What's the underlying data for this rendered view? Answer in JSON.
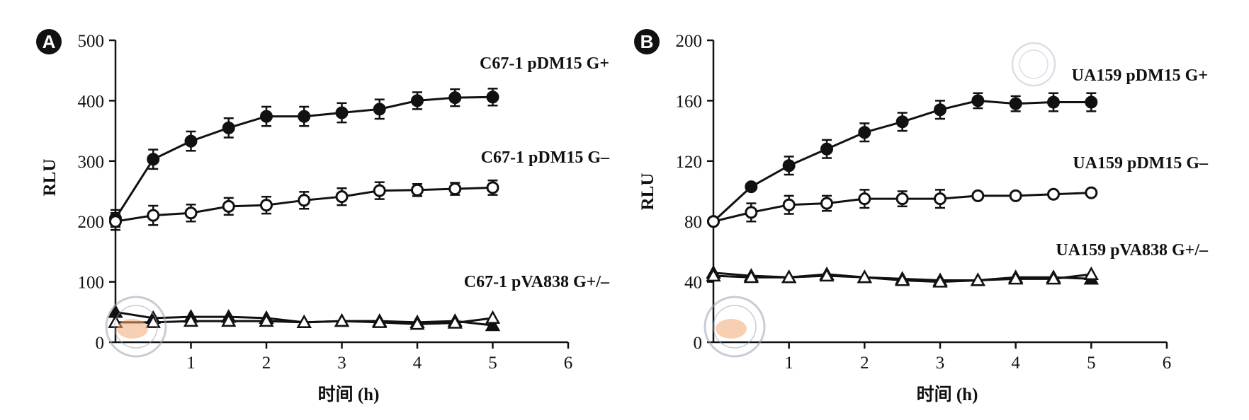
{
  "chart_data": [
    {
      "panel": "A",
      "type": "line",
      "ylabel": "RLU",
      "xlabel": "时间 (h)",
      "xlim": [
        0,
        6
      ],
      "ylim": [
        0,
        500
      ],
      "xticks": [
        "1",
        "2",
        "3",
        "4",
        "5",
        "6"
      ],
      "yticks": [
        "0",
        "100",
        "200",
        "300",
        "400",
        "500"
      ],
      "x": [
        0,
        0.5,
        1,
        1.5,
        2,
        2.5,
        3,
        3.5,
        4,
        4.5,
        5
      ],
      "series": [
        {
          "name": "C67-1 pDM15 G+",
          "marker": "filled-circle",
          "values": [
            205,
            303,
            333,
            355,
            374,
            374,
            380,
            386,
            400,
            405,
            406
          ],
          "err": [
            14,
            16,
            16,
            16,
            16,
            16,
            16,
            16,
            14,
            14,
            14
          ]
        },
        {
          "name": "C67-1 pDM15 G–",
          "marker": "open-circle",
          "values": [
            200,
            210,
            214,
            225,
            227,
            235,
            241,
            251,
            252,
            254,
            256
          ],
          "err": [
            14,
            16,
            14,
            14,
            14,
            14,
            14,
            14,
            10,
            10,
            12
          ]
        },
        {
          "name": "C67-1 pVA838 G+/–",
          "marker": "filled-triangle",
          "values": [
            50,
            40,
            42,
            42,
            40,
            33,
            35,
            35,
            33,
            35,
            28
          ],
          "err": [
            0,
            0,
            0,
            0,
            0,
            0,
            0,
            0,
            0,
            0,
            0
          ]
        },
        {
          "name": "C67-1 pVA838 G+/–",
          "marker": "open-triangle",
          "values": [
            33,
            33,
            35,
            35,
            35,
            33,
            35,
            33,
            30,
            32,
            40
          ],
          "err": [
            0,
            0,
            0,
            0,
            0,
            0,
            0,
            0,
            0,
            0,
            0
          ]
        }
      ],
      "labels": [
        "C67-1 pDM15 G+",
        "C67-1 pDM15 G–",
        "C67-1 pVA838 G+/–"
      ]
    },
    {
      "panel": "B",
      "type": "line",
      "ylabel": "RLU",
      "xlabel": "时间 (h)",
      "xlim": [
        0,
        6
      ],
      "ylim": [
        0,
        200
      ],
      "xticks": [
        "1",
        "2",
        "3",
        "4",
        "5",
        "6"
      ],
      "yticks": [
        "0",
        "40",
        "80",
        "120",
        "160",
        "200"
      ],
      "x": [
        0,
        0.5,
        1,
        1.5,
        2,
        2.5,
        3,
        3.5,
        4,
        4.5,
        5
      ],
      "series": [
        {
          "name": "UA159 pDM15 G+",
          "marker": "filled-circle",
          "values": [
            80,
            103,
            117,
            128,
            139,
            146,
            154,
            160,
            158,
            159,
            159
          ],
          "err": [
            0,
            0,
            6,
            6,
            6,
            6,
            6,
            5,
            5,
            6,
            6
          ]
        },
        {
          "name": "UA159 pDM15 G–",
          "marker": "open-circle",
          "values": [
            80,
            86,
            91,
            92,
            95,
            95,
            95,
            97,
            97,
            98,
            99
          ],
          "err": [
            0,
            6,
            6,
            5,
            6,
            5,
            6,
            0,
            0,
            0,
            0
          ]
        },
        {
          "name": "UA159 pVA838 G+/–",
          "marker": "filled-triangle",
          "values": [
            46,
            44,
            43,
            45,
            43,
            42,
            41,
            41,
            43,
            43,
            42
          ],
          "err": [
            0,
            0,
            0,
            0,
            0,
            0,
            0,
            0,
            0,
            0,
            0
          ]
        },
        {
          "name": "UA159 pVA838 G+/–",
          "marker": "open-triangle",
          "values": [
            44,
            43,
            43,
            44,
            43,
            41,
            40,
            41,
            42,
            42,
            45
          ],
          "err": [
            0,
            0,
            0,
            0,
            0,
            0,
            0,
            0,
            0,
            0,
            0
          ]
        }
      ],
      "labels": [
        "UA159 pDM15 G+",
        "UA159 pDM15 G–",
        "UA159 pVA838 G+/–"
      ]
    }
  ]
}
